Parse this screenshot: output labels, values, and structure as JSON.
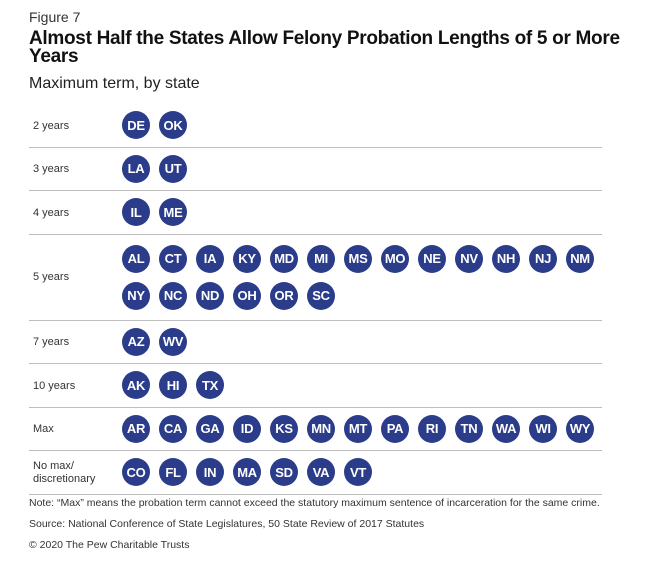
{
  "figure_label": "Figure 7",
  "title": "Almost Half the States Allow Felony Probation Lengths of 5 or More Years",
  "subtitle": "Maximum term, by state",
  "colors": {
    "bubble": "#2a3c8a",
    "bubble_text": "#ffffff",
    "divider": "#bdbdbd"
  },
  "chart_data": {
    "type": "table",
    "title": "Almost Half the States Allow Felony Probation Lengths of 5 or More Years",
    "subtitle": "Maximum term, by state",
    "rows": [
      {
        "label": "2 years",
        "states": [
          "DE",
          "OK"
        ]
      },
      {
        "label": "3 years",
        "states": [
          "LA",
          "UT"
        ]
      },
      {
        "label": "4 years",
        "states": [
          "IL",
          "ME"
        ]
      },
      {
        "label": "5 years",
        "states": [
          "AL",
          "CT",
          "IA",
          "KY",
          "MD",
          "MI",
          "MS",
          "MO",
          "NE",
          "NV",
          "NH",
          "NJ",
          "NM",
          "NY",
          "NC",
          "ND",
          "OH",
          "OR",
          "SC"
        ]
      },
      {
        "label": "7 years",
        "states": [
          "AZ",
          "WV"
        ]
      },
      {
        "label": "10 years",
        "states": [
          "AK",
          "HI",
          "TX"
        ]
      },
      {
        "label": "Max",
        "states": [
          "AR",
          "CA",
          "GA",
          "ID",
          "KS",
          "MN",
          "MT",
          "PA",
          "RI",
          "TN",
          "WA",
          "WI",
          "WY"
        ]
      },
      {
        "label": "No max/ discretionary",
        "states": [
          "CO",
          "FL",
          "IN",
          "MA",
          "SD",
          "VA",
          "VT"
        ]
      }
    ]
  },
  "note": "Note: “Max” means the probation term cannot exceed the statutory maximum sentence of incarceration for the same crime.",
  "source": "Source: National Conference of State Legislatures, 50 State Review of 2017 Statutes",
  "copyright": "© 2020 The Pew Charitable Trusts"
}
